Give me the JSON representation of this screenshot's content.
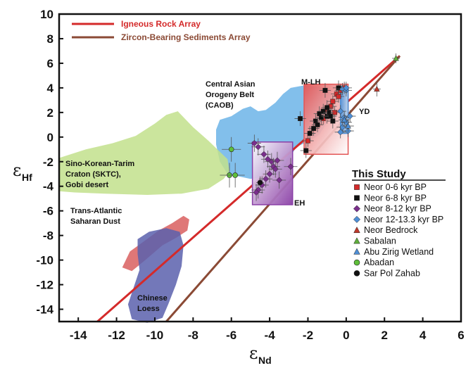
{
  "chart_data": {
    "type": "scatter",
    "xlabel": "ε",
    "xlabel_sub": "Nd",
    "ylabel": "ε",
    "ylabel_sub": "Hf",
    "xlim": [
      -15,
      6
    ],
    "ylim": [
      -15,
      10
    ],
    "x_ticks": [
      -14,
      -12,
      -10,
      -8,
      -6,
      -4,
      -2,
      0,
      2,
      4,
      6
    ],
    "y_ticks": [
      10,
      8,
      6,
      4,
      2,
      0,
      -2,
      -4,
      -6,
      -8,
      -10,
      -12,
      -14
    ],
    "grid": false,
    "lines": [
      {
        "name": "Igneous Rock Array",
        "color": "#d42a2a",
        "x": [
          -13.0,
          2.8
        ],
        "y": [
          -15.0,
          6.6
        ]
      },
      {
        "name": "Zircon-Bearing Sediments Array",
        "color": "#8b4a35",
        "x": [
          -9.4,
          2.8
        ],
        "y": [
          -15.0,
          6.6
        ]
      }
    ],
    "regions": [
      {
        "label": "Central Asian Orogeny Belt (CAOB)",
        "color": "#6cb4e8",
        "polygon": [
          [
            -6.8,
            0.6
          ],
          [
            -6.6,
            1.4
          ],
          [
            -6.0,
            1.7
          ],
          [
            -5.4,
            2.3
          ],
          [
            -5.0,
            2.5
          ],
          [
            -4.6,
            2.1
          ],
          [
            -4.2,
            2.2
          ],
          [
            -3.7,
            2.8
          ],
          [
            -3.3,
            3.5
          ],
          [
            -2.9,
            4.0
          ],
          [
            -2.2,
            4.2
          ],
          [
            -1.4,
            4.1
          ],
          [
            -0.8,
            3.6
          ],
          [
            -0.7,
            2.5
          ],
          [
            -1.0,
            1.2
          ],
          [
            -1.4,
            0.2
          ],
          [
            -1.9,
            -0.3
          ],
          [
            -2.6,
            -0.8
          ],
          [
            -3.0,
            -1.8
          ],
          [
            -3.2,
            -2.6
          ],
          [
            -3.6,
            -3.1
          ],
          [
            -4.2,
            -3.2
          ],
          [
            -5.0,
            -3.4
          ],
          [
            -6.2,
            -3.0
          ],
          [
            -6.6,
            -2.0
          ],
          [
            -6.8,
            -0.6
          ]
        ]
      },
      {
        "label": "Sino-Korean-Tarim Craton (SKTC), Gobi desert",
        "color": "#c2e08c",
        "polygon": [
          [
            -15.0,
            -1.7
          ],
          [
            -13.6,
            -1.0
          ],
          [
            -12.2,
            -0.5
          ],
          [
            -11.0,
            0.1
          ],
          [
            -10.0,
            1.1
          ],
          [
            -9.4,
            1.8
          ],
          [
            -8.8,
            2.1
          ],
          [
            -8.0,
            0.8
          ],
          [
            -7.2,
            -0.3
          ],
          [
            -6.6,
            -1.2
          ],
          [
            -6.2,
            -1.8
          ],
          [
            -6.1,
            -2.8
          ],
          [
            -6.4,
            -3.4
          ],
          [
            -7.2,
            -4.2
          ],
          [
            -8.6,
            -4.6
          ],
          [
            -10.4,
            -4.7
          ],
          [
            -12.6,
            -4.6
          ],
          [
            -14.2,
            -4.5
          ],
          [
            -15.0,
            -4.4
          ]
        ]
      },
      {
        "label": "Trans-Atlantic Saharan Dust",
        "color": "#d95f5f",
        "polygon": [
          [
            -11.7,
            -10.6
          ],
          [
            -11.3,
            -9.3
          ],
          [
            -10.5,
            -8.4
          ],
          [
            -9.8,
            -7.6
          ],
          [
            -9.1,
            -7.0
          ],
          [
            -8.5,
            -6.4
          ],
          [
            -8.2,
            -6.7
          ],
          [
            -8.3,
            -7.6
          ],
          [
            -8.9,
            -8.2
          ],
          [
            -9.6,
            -8.8
          ],
          [
            -10.5,
            -10.0
          ],
          [
            -11.2,
            -10.9
          ]
        ]
      },
      {
        "label": "Chinese Loess",
        "color": "#5a60ad",
        "polygon": [
          [
            -10.9,
            -8.3
          ],
          [
            -10.3,
            -7.7
          ],
          [
            -9.4,
            -7.4
          ],
          [
            -8.7,
            -7.7
          ],
          [
            -8.5,
            -8.8
          ],
          [
            -8.6,
            -10.5
          ],
          [
            -8.9,
            -12.0
          ],
          [
            -9.3,
            -13.6
          ],
          [
            -9.6,
            -14.7
          ],
          [
            -10.4,
            -15.1
          ],
          [
            -11.2,
            -14.8
          ],
          [
            -11.4,
            -13.6
          ],
          [
            -11.1,
            -12.2
          ],
          [
            -10.8,
            -10.8
          ],
          [
            -10.9,
            -9.5
          ]
        ]
      },
      {
        "label": "M-LH",
        "color": "#e35555",
        "rect": [
          -2.2,
          -1.4,
          0.1,
          4.3
        ]
      },
      {
        "label": "YD",
        "color": "#4d8fd6",
        "rect": [
          -0.3,
          0.3,
          0.1,
          4.1
        ]
      },
      {
        "label": "EH",
        "color": "#8a3fa6",
        "rect": [
          -4.9,
          -5.5,
          -2.8,
          -0.4
        ]
      }
    ],
    "legend": {
      "title": "This Study",
      "placement": "right",
      "entries": [
        {
          "label": "Neor 0-6 kyr BP",
          "marker": "square",
          "color": "#d42a2a"
        },
        {
          "label": "Neor 6-8 kyr BP",
          "marker": "square",
          "color": "#111111"
        },
        {
          "label": "Neor 8-12 kyr BP",
          "marker": "diamond",
          "color": "#7a2e8c"
        },
        {
          "label": "Neor 12-13.3 kyr BP",
          "marker": "diamond",
          "color": "#4f8fd6"
        },
        {
          "label": "Neor Bedrock",
          "marker": "triangle",
          "color": "#c0392b"
        },
        {
          "label": "Sabalan",
          "marker": "triangle",
          "color": "#5fae3c"
        },
        {
          "label": "Abu Zirig Wetland",
          "marker": "triangle",
          "color": "#4f8fd6"
        },
        {
          "label": "Abadan",
          "marker": "circle",
          "color": "#5fbf3a"
        },
        {
          "label": "Sar Pol Zahab",
          "marker": "circle",
          "color": "#111111"
        }
      ]
    },
    "series": [
      {
        "name": "Neor 0-6 kyr BP",
        "marker": "square",
        "color": "#d42a2a",
        "points": [
          [
            -2.0,
            -0.3
          ],
          [
            -1.2,
            1.5
          ],
          [
            -0.8,
            2.5
          ],
          [
            -0.7,
            2.9
          ],
          [
            -0.5,
            3.5
          ],
          [
            -0.3,
            3.8
          ],
          [
            -0.1,
            4.0
          ],
          [
            -0.4,
            3.3
          ],
          [
            -1.0,
            2.2
          ],
          [
            -0.6,
            2.0
          ]
        ],
        "xerr": 0.3,
        "yerr": 0.5
      },
      {
        "name": "Neor 6-8 kyr BP",
        "marker": "square",
        "color": "#111111",
        "points": [
          [
            -1.4,
            1.9
          ],
          [
            -1.3,
            1.6
          ],
          [
            -1.2,
            2.1
          ],
          [
            -1.0,
            1.7
          ],
          [
            -0.9,
            2.0
          ],
          [
            -0.8,
            1.7
          ],
          [
            -1.6,
            1.3
          ],
          [
            -1.5,
            1.0
          ],
          [
            -1.7,
            0.7
          ],
          [
            -1.9,
            0.3
          ],
          [
            -2.4,
            1.5
          ],
          [
            -1.1,
            3.8
          ],
          [
            -0.4,
            4.0
          ],
          [
            -1.0,
            2.4
          ],
          [
            -0.7,
            1.3
          ],
          [
            -2.1,
            -1.1
          ]
        ],
        "xerr": 0.3,
        "yerr": 0.6
      },
      {
        "name": "Neor 8-12 kyr BP",
        "marker": "diamond",
        "color": "#7a2e8c",
        "points": [
          [
            -4.8,
            -0.5
          ],
          [
            -4.6,
            -0.8
          ],
          [
            -4.3,
            -1.4
          ],
          [
            -4.1,
            -1.8
          ],
          [
            -3.9,
            -2.0
          ],
          [
            -3.8,
            -2.4
          ],
          [
            -3.7,
            -2.6
          ],
          [
            -4.0,
            -3.0
          ],
          [
            -4.2,
            -3.4
          ],
          [
            -4.4,
            -3.9
          ],
          [
            -4.6,
            -4.3
          ],
          [
            -3.6,
            -1.9
          ],
          [
            -3.5,
            -3.5
          ],
          [
            -4.7,
            -4.5
          ],
          [
            -2.9,
            -2.4
          ]
        ],
        "xerr": 0.35,
        "yerr": 0.7
      },
      {
        "name": "Neor 12-13.3 kyr BP",
        "marker": "diamond",
        "color": "#4f8fd6",
        "points": [
          [
            -0.2,
            3.9
          ],
          [
            0.0,
            3.8
          ],
          [
            -0.3,
            2.1
          ],
          [
            -0.1,
            1.6
          ],
          [
            0.0,
            1.2
          ],
          [
            -0.2,
            0.8
          ],
          [
            0.1,
            0.5
          ],
          [
            -0.3,
            0.4
          ],
          [
            0.2,
            1.7
          ],
          [
            0.0,
            4.0
          ]
        ],
        "xerr": 0.3,
        "yerr": 0.5
      },
      {
        "name": "Neor Bedrock",
        "marker": "triangle",
        "color": "#c0392b",
        "points": [
          [
            1.6,
            3.9
          ]
        ],
        "xerr": 0.2,
        "yerr": 0.6
      },
      {
        "name": "Sabalan",
        "marker": "triangle",
        "color": "#5fae3c",
        "points": [
          [
            2.6,
            6.4
          ]
        ],
        "xerr": 0.2,
        "yerr": 0.4
      },
      {
        "name": "Abu Zirig Wetland",
        "marker": "triangle",
        "color": "#4f8fd6",
        "points": [
          [
            -0.1,
            1.4
          ],
          [
            0.1,
            0.9
          ]
        ],
        "xerr": 0.3,
        "yerr": 0.5
      },
      {
        "name": "Abadan",
        "marker": "circle",
        "color": "#5fbf3a",
        "points": [
          [
            -6.0,
            -1.0
          ],
          [
            -6.1,
            -3.1
          ],
          [
            -5.8,
            -3.1
          ]
        ],
        "xerr": 0.5,
        "yerr": 1.0
      },
      {
        "name": "Sar Pol Zahab",
        "marker": "circle",
        "color": "#111111",
        "points": [
          [
            -4.5,
            -3.7
          ]
        ],
        "xerr": 0.2,
        "yerr": 0.5
      }
    ]
  }
}
